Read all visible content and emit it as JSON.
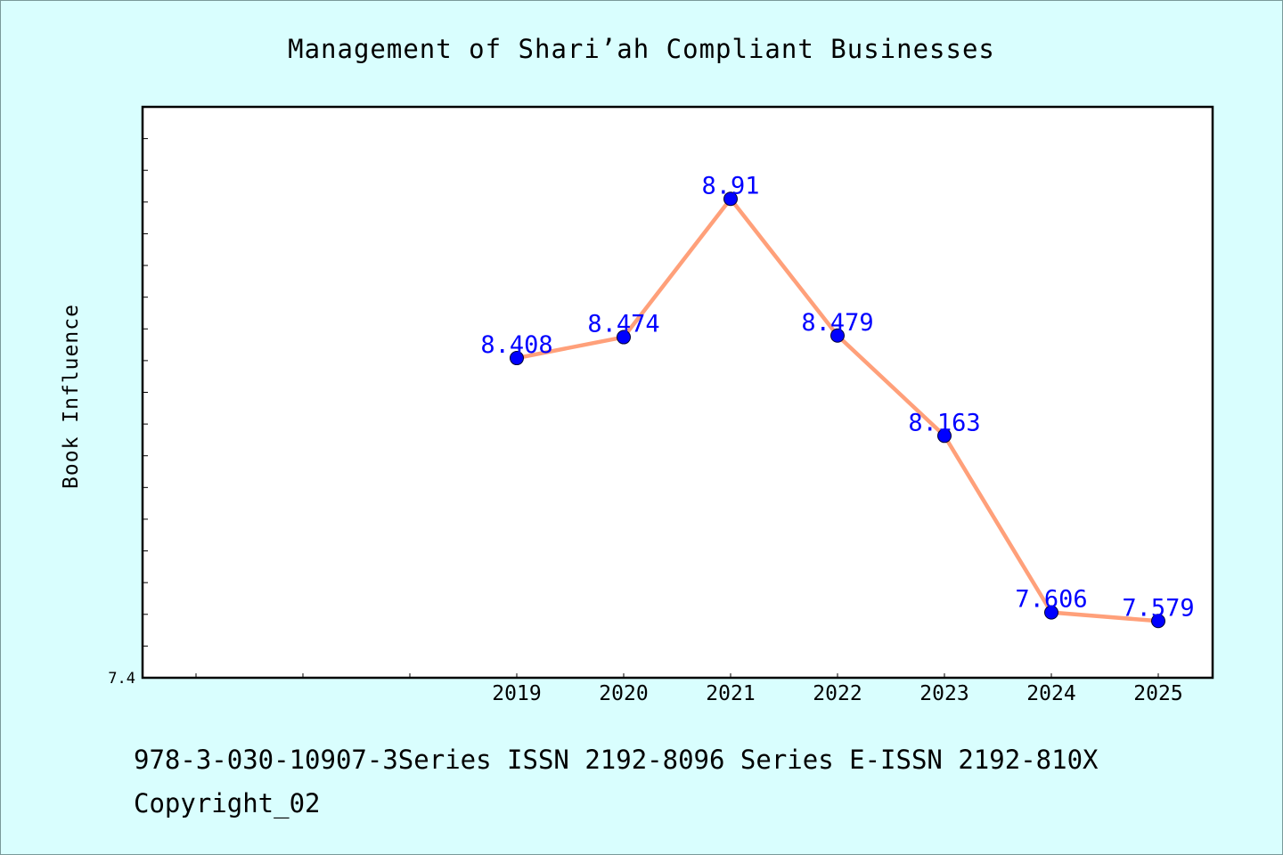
{
  "chart_data": {
    "type": "line",
    "title": "Management of Shari’ah Compliant Businesses",
    "xlabel": "",
    "ylabel": "Book Influence",
    "categories": [
      "2019",
      "2020",
      "2021",
      "2022",
      "2023",
      "2024",
      "2025"
    ],
    "series": [
      {
        "values": [
          8.408,
          8.474,
          8.91,
          8.479,
          8.163,
          7.606,
          7.579
        ],
        "labels": [
          "8.408",
          "8.474",
          "8.91",
          "8.479",
          "8.163",
          "7.606",
          "7.579"
        ]
      }
    ],
    "ylim": [
      7.4,
      9.2
    ],
    "y_tick_labels": [
      "7.4"
    ],
    "grid": false,
    "legend": "none",
    "colors": {
      "background": "#d9fefe",
      "plot_background": "#ffffff",
      "line": "#ffa07a",
      "marker": "#0000ff",
      "data_label": "#0000ff",
      "axis": "#000000"
    }
  },
  "footer": {
    "line1": "978-3-030-10907-3Series ISSN 2192-8096 Series E-ISSN 2192-810X",
    "line2": "Copyright_02"
  }
}
